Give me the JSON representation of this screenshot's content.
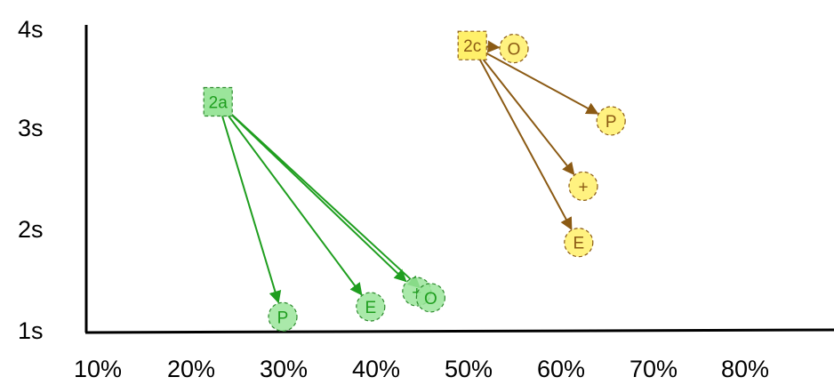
{
  "chart_data": {
    "type": "scatter",
    "x_ticks": [
      "10%",
      "20%",
      "30%",
      "40%",
      "50%",
      "60%",
      "70%",
      "80%"
    ],
    "y_ticks": [
      "1s",
      "2s",
      "3s",
      "4s"
    ],
    "xlim": [
      8,
      85
    ],
    "ylim": [
      1.0,
      4.15
    ],
    "groups": [
      {
        "source": {
          "label": "2a",
          "x": 23,
          "y": 3.27
        },
        "color": "#1f9e1f",
        "fill": "#9be59b",
        "stroke": "#2e8b2e",
        "targets": [
          {
            "label": "P",
            "x": 30,
            "y": 1.13
          },
          {
            "label": "E",
            "x": 39.5,
            "y": 1.23
          },
          {
            "label": "+",
            "x": 44.5,
            "y": 1.38
          },
          {
            "label": "O",
            "x": 46,
            "y": 1.32
          }
        ]
      },
      {
        "source": {
          "label": "2c",
          "x": 50.5,
          "y": 3.83
        },
        "color": "#8b5a14",
        "fill": "#fff06a",
        "stroke": "#8b5a14",
        "targets": [
          {
            "label": "O",
            "x": 55,
            "y": 3.8
          },
          {
            "label": "P",
            "x": 65.5,
            "y": 3.08
          },
          {
            "label": "+",
            "x": 62.5,
            "y": 2.43
          },
          {
            "label": "E",
            "x": 62,
            "y": 1.87
          }
        ]
      }
    ]
  }
}
